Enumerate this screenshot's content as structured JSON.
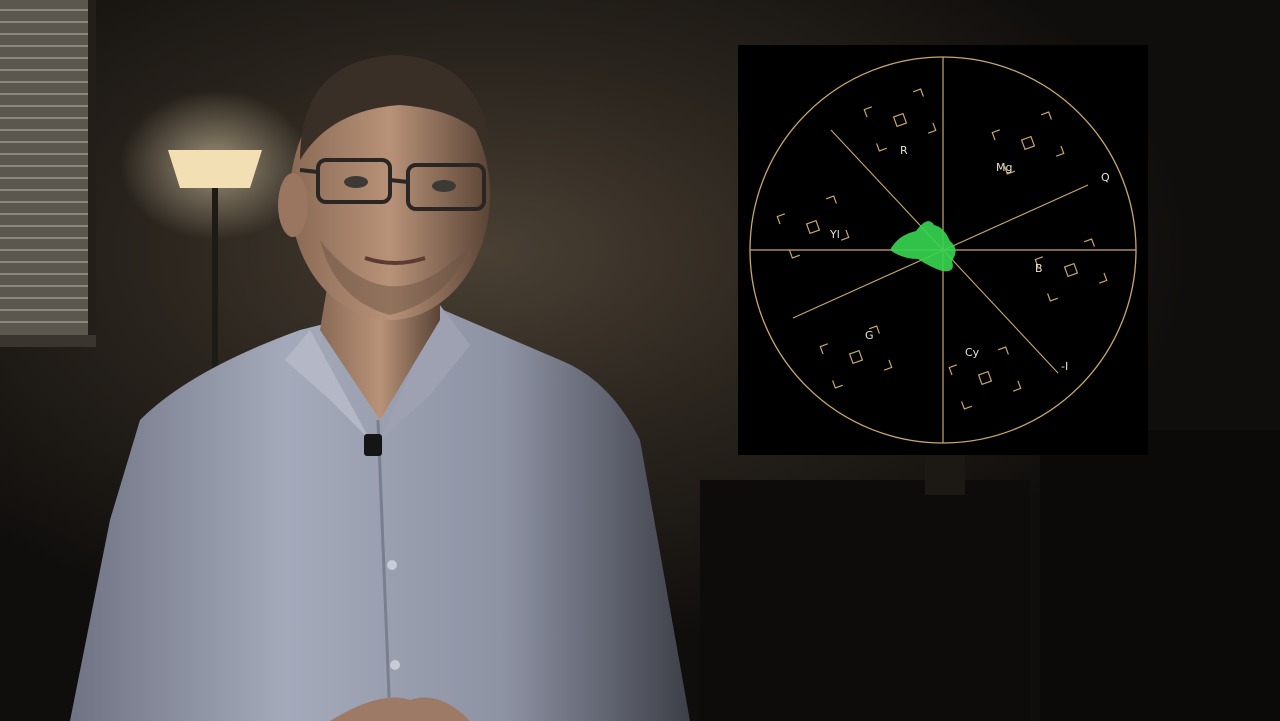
{
  "scene": {
    "subject": "presenter",
    "background_tone": "#14120f",
    "shirt_color": "#9fa4b6",
    "lamp_glow": "#f2dfb4"
  },
  "vectorscope": {
    "graticule_color": "#c9a86a",
    "trace_color": "#37d24f",
    "labels": {
      "r": "R",
      "mg": "Mg",
      "q": "Q",
      "yl": "Yl",
      "b": "B",
      "g": "G",
      "cy": "Cy",
      "minus_i": "-I"
    }
  }
}
